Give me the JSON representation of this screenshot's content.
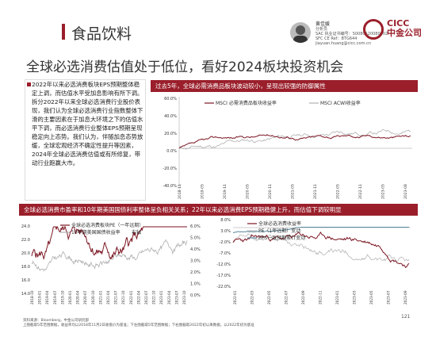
{
  "header": {
    "section_title": "食品饮料",
    "author_name": "黄佳媛",
    "author_role": "分析员",
    "author_line1": "SAC 执业证书编号：S0080520080002",
    "author_line2": "SFC CE Ref：BTG644",
    "author_line3": "jiayuan.huang@cicc.com.cn",
    "logo_text": "CICC",
    "logo_sub": "中金公司"
  },
  "headline": "全球必选消费估值处于低位，看好2024板块投资机会",
  "left_panel": {
    "text": "2022年以来必选消费板块EPS预期整体稳定上调，而估值水平受加息影响有所下调。拆分2022年以来全球必选消费行业股价表现，我们认为全球必选消费行业指数整体下滑的主要因素在于加息大环境之下的估值水平下调，而必选消费行业整体EPS预期呈现稳定向上态势。我们认为，伴随加息态势放缓，全球宏观经济不确定性提升等因素，2024年全球必选消费估值或有所修复，带动行业跑赢大市。"
  },
  "chart1": {
    "title": "过去5年，全球必需消费品板块波动较小，呈现出较强的防御属性",
    "legend": [
      "MSCI 必需消费品板块收益率",
      "MSCI ACWI收益率"
    ],
    "yticks": [
      "60.0%",
      "40.0%",
      "20.0%",
      "0.0%",
      "-20.0%",
      "-40.0%"
    ],
    "xticks": [
      "2018-11",
      "2019-05",
      "2019-11",
      "2020-05",
      "2020-11",
      "2021-05",
      "2021-11",
      "2022-05",
      "2022-11",
      "2023-05",
      "2023-08"
    ]
  },
  "section2_title": "全球必选消费市盈率和10年期美国国债利率整体呈负相关关系；22年以来必选消费EPS预期稳健上升，而估值下调较明显",
  "chart2": {
    "legend": [
      "全球必选消费板块PE（一年远期）",
      "10年期美国国债收益率"
    ],
    "right_axis_label": "右轴",
    "yticks_left": [
      "24.0",
      "22.0",
      "20.0",
      "18.0",
      "16.0",
      "14.0"
    ],
    "yticks_right": [
      "6.0%",
      "5.0%",
      "4.0%",
      "3.0%",
      "2.0%",
      "1.0%",
      "0.0%"
    ],
    "xticks": [
      "2018-10",
      "2019-01",
      "2019-04",
      "2019-07",
      "2019-10",
      "2020-01",
      "2020-04",
      "2020-07",
      "2020-10",
      "2021-01",
      "2021-04",
      "2021-07",
      "2021-10",
      "2022-01",
      "2022-04",
      "2022-07",
      "2022-10",
      "2023-01",
      "2023-04",
      "2023-07",
      "2023-10"
    ]
  },
  "chart3": {
    "legend": [
      "全球必选消费收益率",
      "PE（1年远期）变动",
      "EPS一致预期累计变动"
    ],
    "yticks": [
      "8.0%",
      "3.0%",
      "-2.0%",
      "-7.0%",
      "-12.0%",
      "-17.0%",
      "-22.0%"
    ],
    "xticks": [
      "2022-01",
      "2022-03",
      "2022-05",
      "2022-07",
      "2022-09",
      "2022-11",
      "2023-01",
      "2023-03",
      "2023-05",
      "2023-07",
      "2023-09"
    ]
  },
  "footer": {
    "line1": "资料来源：Bloomberg，中金公司研究部",
    "line2": "上图截取5年范围数据，收益率均以2018年11月2日收盘价为基准；下左图截取5年范围数据；下右图截取2022年初以来数据，以2022年初为基准"
  },
  "page_number": "121"
}
